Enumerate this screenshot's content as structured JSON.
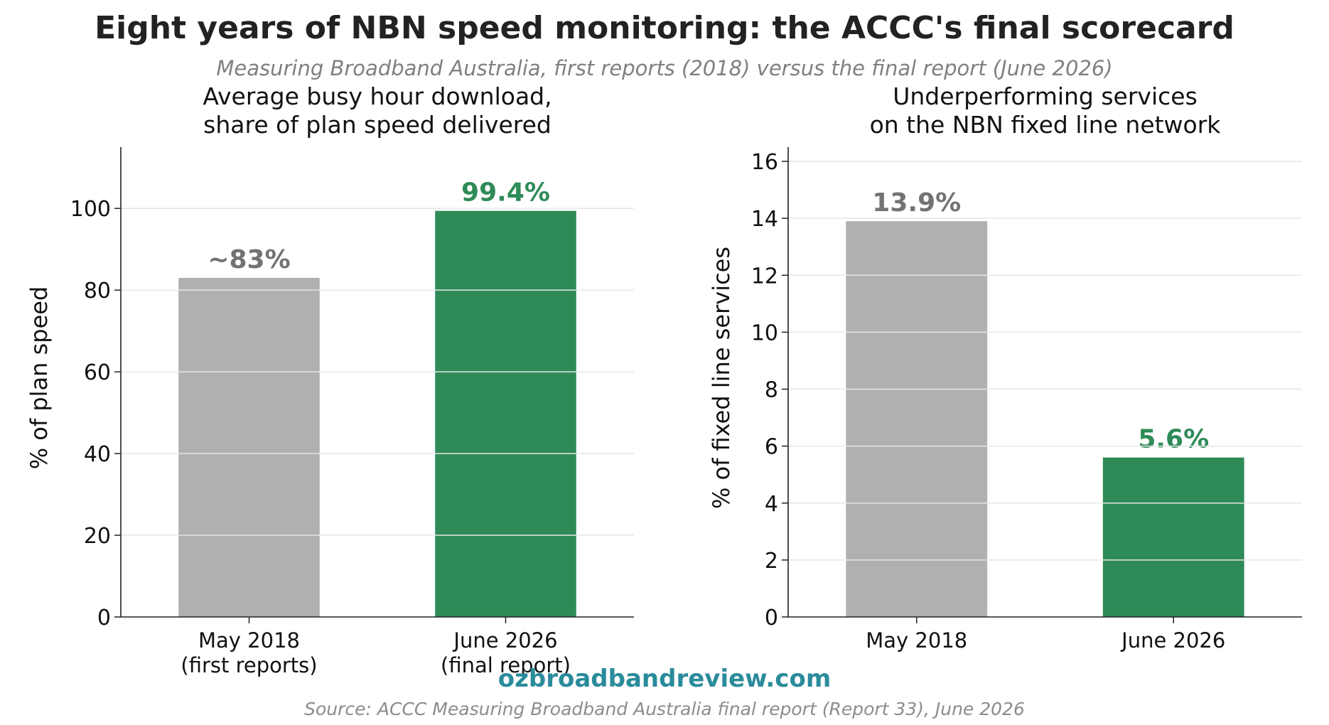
{
  "title": "Eight years of NBN speed monitoring: the ACCC's final scorecard",
  "subtitle": "Measuring Broadband Australia, first reports (2018) versus the final report (June 2026)",
  "watermark": "ozbroadbandreview.com",
  "source": "Source: ACCC Measuring Broadband Australia final report (Report 33), June 2026",
  "colors": {
    "gray_bar": "#b0b0b0",
    "green_bar": "#2e8b57",
    "gray_label": "#737373",
    "green_label": "#2e8b57",
    "watermark": "#2a8b9b",
    "subtitle": "#808080",
    "grid": "#e6e6e6"
  },
  "chart_data": [
    {
      "type": "bar",
      "title_lines": [
        "Average busy hour download,",
        "share of plan speed delivered"
      ],
      "categories": [
        [
          "May 2018",
          "(first reports)"
        ],
        [
          "June 2026",
          "(final report)"
        ]
      ],
      "values": [
        83,
        99.4
      ],
      "value_labels": [
        "~83%",
        "99.4%"
      ],
      "ylabel": "% of plan speed",
      "ylim": [
        0,
        115
      ],
      "yticks": [
        0,
        20,
        40,
        60,
        80,
        100
      ],
      "grid": true
    },
    {
      "type": "bar",
      "title_lines": [
        "Underperforming services",
        "on the NBN fixed line network"
      ],
      "categories": [
        [
          "May 2018"
        ],
        [
          "June 2026"
        ]
      ],
      "values": [
        13.9,
        5.6
      ],
      "value_labels": [
        "13.9%",
        "5.6%"
      ],
      "ylabel": "% of fixed line services",
      "ylim": [
        0,
        16.5
      ],
      "yticks": [
        0,
        2,
        4,
        6,
        8,
        10,
        12,
        14,
        16
      ],
      "grid": true
    }
  ]
}
